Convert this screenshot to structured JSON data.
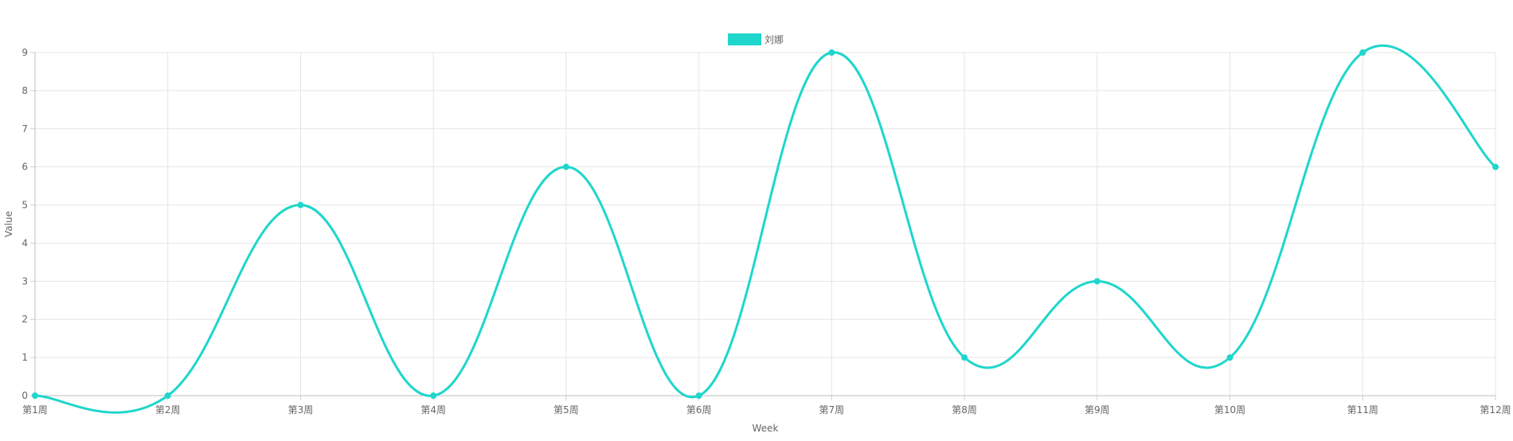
{
  "chart_data": {
    "type": "line",
    "title": "",
    "xlabel": "Week",
    "ylabel": "Value",
    "categories": [
      "第1周",
      "第2周",
      "第3周",
      "第4周",
      "第5周",
      "第6周",
      "第7周",
      "第8周",
      "第9周",
      "第10周",
      "第11周",
      "第12周"
    ],
    "series": [
      {
        "name": "刘娜",
        "color": "#1ED6CC",
        "values": [
          0,
          0,
          5,
          0,
          6,
          0,
          9,
          1,
          3,
          1,
          9,
          6
        ]
      }
    ],
    "ylim": [
      0,
      9
    ],
    "yticks": [
      0,
      1,
      2,
      3,
      4,
      5,
      6,
      7,
      8,
      9
    ],
    "grid": true,
    "legend_position": "top-center",
    "smooth": true
  }
}
